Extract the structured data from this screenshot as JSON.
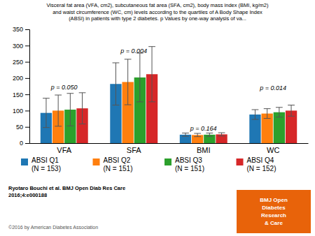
{
  "chart_data": {
    "type": "bar",
    "title": "Visceral fat area (VFA, cm2), subcutaneous fat area (SFA, cm2), body mass index (BMI, kg/m2)\nand waist circumference (WC, cm) levels according to the quartiles of A Body Shape Index\n(ABSI) in patients with type 2 diabetes. p Values by one-way analysis of va...",
    "categories": [
      "VFA",
      "SFA",
      "BMI",
      "WC"
    ],
    "series": [
      {
        "name": "ABSI Q1",
        "sample_size": "(N = 153)",
        "values": [
          93,
          182,
          26,
          88
        ],
        "errors": [
          45,
          65,
          5,
          15
        ]
      },
      {
        "name": "ABSI Q2",
        "sample_size": "(N = 151)",
        "values": [
          100,
          188,
          25,
          91
        ],
        "errors": [
          48,
          70,
          5,
          15
        ]
      },
      {
        "name": "ABSI Q3",
        "sample_size": "(N = 151)",
        "values": [
          103,
          202,
          26,
          95
        ],
        "errors": [
          50,
          75,
          5,
          15
        ]
      },
      {
        "name": "ABSI Q4",
        "sample_size": "(N = 152)",
        "values": [
          107,
          212,
          27,
          100
        ],
        "errors": [
          48,
          85,
          5,
          17
        ]
      }
    ],
    "annotations": [
      {
        "text": "p = 0.050",
        "x": "VFA",
        "y": 162
      },
      {
        "text": "p = 0.004",
        "x": "SFA",
        "y": 272
      },
      {
        "text": "p = 0.164",
        "x": "BMI",
        "y": 34
      },
      {
        "text": "p = 0.014",
        "x": "WC",
        "y": 158
      }
    ],
    "ylim": [
      0,
      350
    ],
    "yticks": [
      0,
      50,
      100,
      150,
      200,
      250,
      300,
      350
    ],
    "grid": false,
    "footer": "Ryotaro Bouchi et al. BMJ Open Diab Res Care\n2016;4:e000188",
    "copyright": "©2016 by American Diabetes Association",
    "badge": {
      "text": "BMJ Open\nDiabetes\nResearch\n& Care",
      "color": "#E8630A"
    }
  }
}
